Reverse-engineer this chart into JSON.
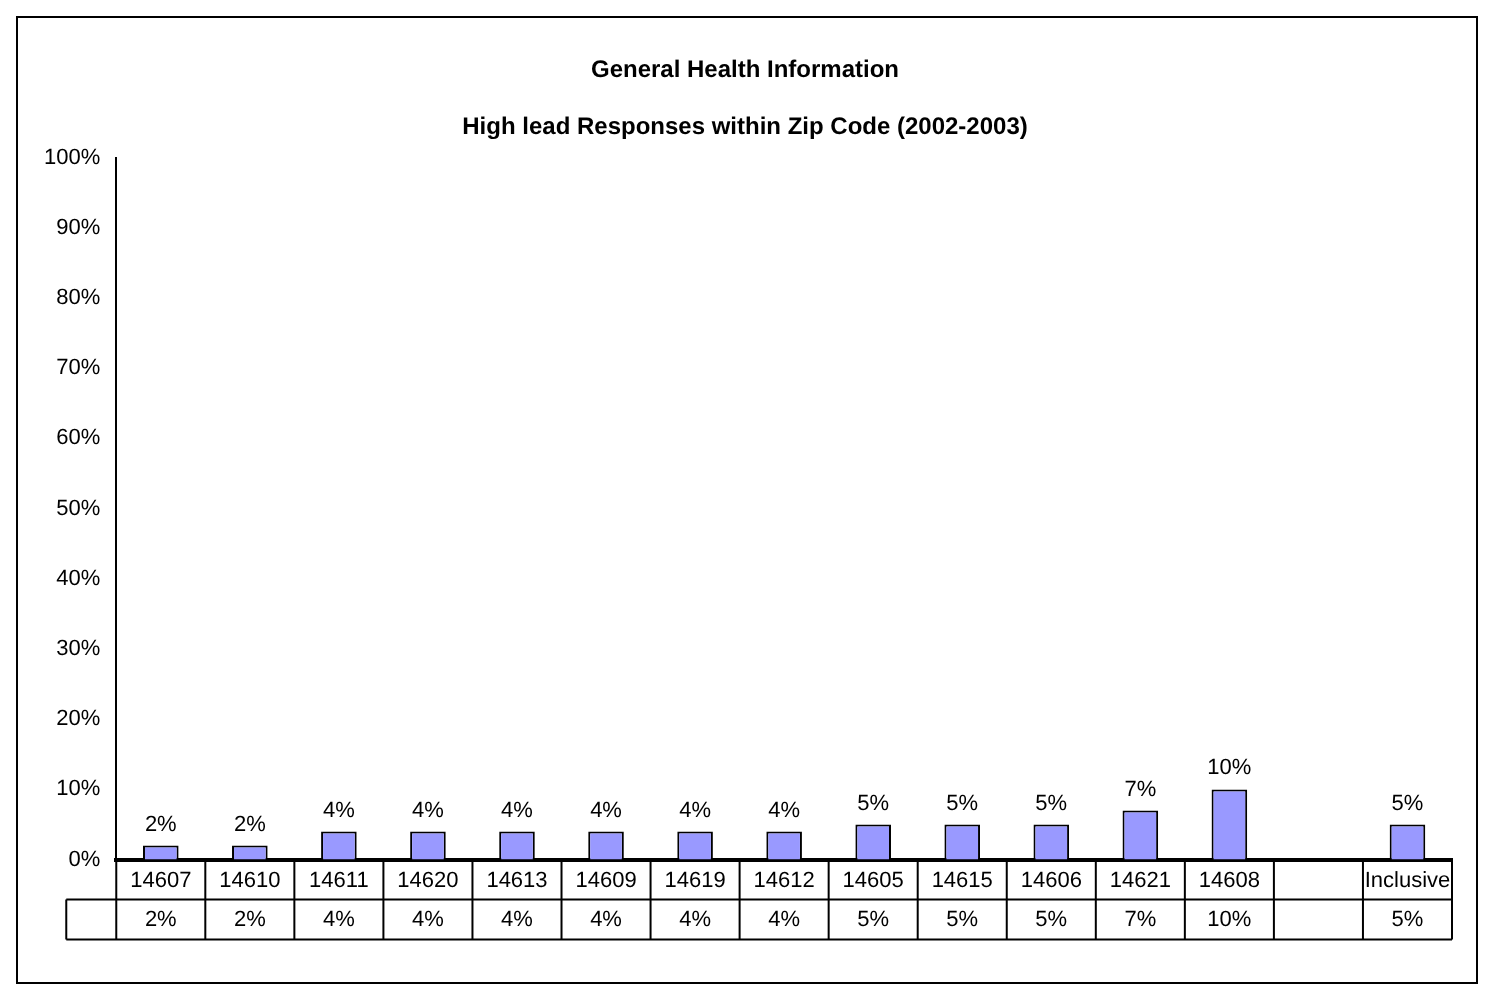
{
  "chart_data": {
    "type": "bar",
    "title": "General Health Information",
    "subtitle": "High lead Responses within Zip Code (2002-2003)",
    "categories": [
      "14607",
      "14610",
      "14611",
      "14620",
      "14613",
      "14609",
      "14619",
      "14612",
      "14605",
      "14615",
      "14606",
      "14621",
      "14608",
      null,
      "Inclusive"
    ],
    "values": [
      2,
      2,
      4,
      4,
      4,
      4,
      4,
      4,
      5,
      5,
      5,
      7,
      10,
      null,
      5
    ],
    "value_labels": [
      "2%",
      "2%",
      "4%",
      "4%",
      "4%",
      "4%",
      "4%",
      "4%",
      "5%",
      "5%",
      "5%",
      "7%",
      "10%",
      null,
      "5%"
    ],
    "color": "#9999ff",
    "ylim": [
      0,
      100
    ],
    "yticks": [
      {
        "value": 0,
        "label": "0%"
      },
      {
        "value": 10,
        "label": "10%"
      },
      {
        "value": 20,
        "label": "20%"
      },
      {
        "value": 30,
        "label": "30%"
      },
      {
        "value": 40,
        "label": "40%"
      },
      {
        "value": 50,
        "label": "50%"
      },
      {
        "value": 60,
        "label": "60%"
      },
      {
        "value": 70,
        "label": "70%"
      },
      {
        "value": 80,
        "label": "80%"
      },
      {
        "value": 90,
        "label": "90%"
      },
      {
        "value": 100,
        "label": "100%"
      }
    ],
    "grid": false,
    "legend": false
  }
}
